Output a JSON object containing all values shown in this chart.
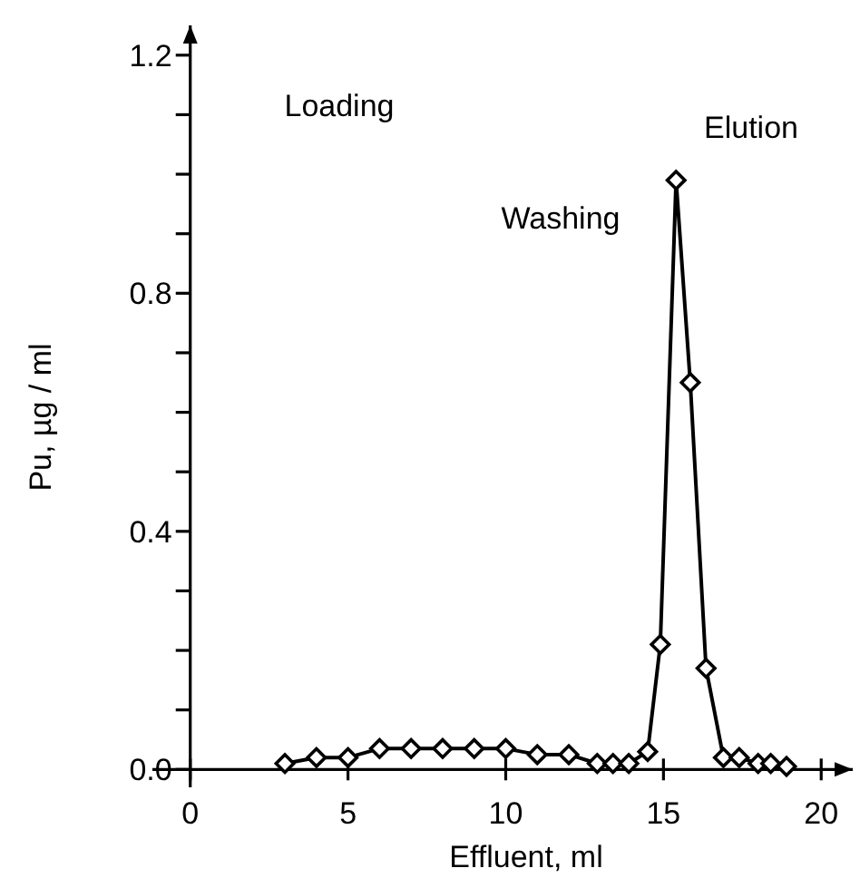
{
  "chart_data": {
    "type": "line",
    "xlabel": "Effluent, ml",
    "ylabel": "Pu, µg / ml",
    "x": [
      3,
      4,
      5,
      6,
      7,
      8,
      9,
      10,
      11,
      12,
      12.9,
      13.4,
      13.9,
      14.5,
      14.9,
      15.4,
      15.85,
      16.35,
      16.9,
      17.4,
      18,
      18.4,
      18.9
    ],
    "series": [
      {
        "color": "#000000",
        "values": [
          0.01,
          0.02,
          0.02,
          0.035,
          0.035,
          0.035,
          0.035,
          0.035,
          0.025,
          0.025,
          0.01,
          0.01,
          0.01,
          0.03,
          0.21,
          0.99,
          0.65,
          0.17,
          0.02,
          0.02,
          0.01,
          0.01,
          0.005
        ]
      }
    ],
    "xlim": [
      -1.2,
      21
    ],
    "ylim": [
      -0.03,
      1.25
    ],
    "xticks": [
      0,
      5,
      10,
      15,
      20
    ],
    "yticks": [
      {
        "value": 0,
        "label": "0.0"
      },
      {
        "value": 0.1,
        "label": null
      },
      {
        "value": 0.2,
        "label": null
      },
      {
        "value": 0.3,
        "label": null
      },
      {
        "value": 0.4,
        "label": "0.4"
      },
      {
        "value": 0.5,
        "label": null
      },
      {
        "value": 0.6,
        "label": null
      },
      {
        "value": 0.7,
        "label": null
      },
      {
        "value": 0.8,
        "label": "0.8"
      },
      {
        "value": 0.9,
        "label": null
      },
      {
        "value": 1.0,
        "label": null
      },
      {
        "value": 1.1,
        "label": null
      },
      {
        "value": 1.2,
        "label": "1.2"
      }
    ],
    "marker": "diamond",
    "line_style": "solid",
    "grid": false,
    "annotations": [
      "Loading",
      "Washing",
      "Elution"
    ]
  }
}
